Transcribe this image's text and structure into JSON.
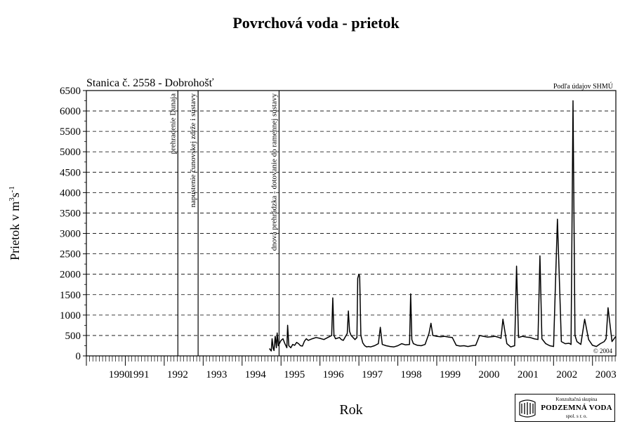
{
  "chart_data": {
    "type": "line",
    "title": "Povrchová voda - prietok",
    "subtitle": "Stanica č. 2558 - Dobrohošť",
    "source_note": "Podľa údajov SHMÚ",
    "copyright": "© 2004",
    "xlabel": "Rok",
    "ylabel_main": "Prietok v m",
    "ylabel_sup1": "3",
    "ylabel_mid": "s",
    "ylabel_sup2": "-1",
    "xlim": [
      1990,
      2003.6
    ],
    "ylim": [
      0,
      6500
    ],
    "yticks": [
      0,
      500,
      1000,
      1500,
      2000,
      2500,
      3000,
      3500,
      4000,
      4500,
      5000,
      5500,
      6000,
      6500
    ],
    "xtick_labels": [
      {
        "label": "1990",
        "x": 1990.5
      },
      {
        "label": "1991",
        "x": 1991.0
      },
      {
        "label": "1992",
        "x": 1992.0
      },
      {
        "label": "1993",
        "x": 1993.0
      },
      {
        "label": "1994",
        "x": 1994.0
      },
      {
        "label": "1995",
        "x": 1995.0
      },
      {
        "label": "1996",
        "x": 1996.0
      },
      {
        "label": "1997",
        "x": 1997.0
      },
      {
        "label": "1998",
        "x": 1998.0
      },
      {
        "label": "1999",
        "x": 1999.0
      },
      {
        "label": "2000",
        "x": 2000.0
      },
      {
        "label": "2001",
        "x": 2001.0
      },
      {
        "label": "2002",
        "x": 2002.0
      },
      {
        "label": "2003",
        "x": 2003.0
      }
    ],
    "year_boundaries": [
      1990,
      1991,
      1992,
      1993,
      1994,
      1995,
      1996,
      1997,
      1998,
      1999,
      2000,
      2001,
      2002,
      2003
    ],
    "grid_dashed_y": true,
    "event_lines": [
      {
        "x": 1992.35,
        "label": "prehradenie Dunaja"
      },
      {
        "x": 1992.87,
        "label": "napustenie čunovskej zdrže i sústavy"
      },
      {
        "x": 1994.95,
        "label": "dnová prehrádzka - dotovanie do ramennej sústavy"
      }
    ],
    "series": [
      {
        "x": [
          1994.7,
          1994.75,
          1994.77,
          1994.8,
          1994.82,
          1994.85,
          1994.88,
          1994.9,
          1994.93,
          1995.0,
          1995.05,
          1995.1,
          1995.15,
          1995.17,
          1995.2,
          1995.25,
          1995.3,
          1995.35,
          1995.4,
          1995.45,
          1995.5,
          1995.55,
          1995.6,
          1995.65,
          1995.7,
          1995.75,
          1995.8,
          1995.9,
          1996.0,
          1996.1,
          1996.2,
          1996.3,
          1996.33,
          1996.36,
          1996.4,
          1996.5,
          1996.55,
          1996.6,
          1996.7,
          1996.73,
          1996.76,
          1996.8,
          1996.9,
          1996.95,
          1996.97,
          1997.0,
          1997.02,
          1997.05,
          1997.1,
          1997.15,
          1997.2,
          1997.25,
          1997.3,
          1997.4,
          1997.5,
          1997.55,
          1997.6,
          1997.7,
          1997.8,
          1997.9,
          1998.0,
          1998.1,
          1998.2,
          1998.3,
          1998.33,
          1998.36,
          1998.4,
          1998.5,
          1998.6,
          1998.7,
          1998.8,
          1998.85,
          1998.9,
          1999.0,
          1999.1,
          1999.2,
          1999.3,
          1999.4,
          1999.5,
          1999.6,
          1999.7,
          1999.8,
          1999.9,
          2000.0,
          2000.1,
          2000.2,
          2000.3,
          2000.4,
          2000.5,
          2000.6,
          2000.65,
          2000.7,
          2000.8,
          2000.9,
          2001.0,
          2001.05,
          2001.1,
          2001.2,
          2001.3,
          2001.4,
          2001.5,
          2001.6,
          2001.65,
          2001.7,
          2001.8,
          2001.9,
          2002.0,
          2002.1,
          2002.2,
          2002.3,
          2002.4,
          2002.45,
          2002.5,
          2002.55,
          2002.6,
          2002.7,
          2002.8,
          2002.9,
          2003.0,
          2003.1,
          2003.2,
          2003.3,
          2003.35,
          2003.4,
          2003.5,
          2003.6
        ],
        "y": [
          180,
          120,
          420,
          180,
          130,
          480,
          200,
          560,
          250,
          380,
          420,
          300,
          200,
          750,
          250,
          200,
          280,
          260,
          330,
          300,
          250,
          240,
          360,
          420,
          380,
          400,
          420,
          450,
          430,
          400,
          450,
          500,
          1420,
          500,
          420,
          450,
          400,
          380,
          550,
          1100,
          600,
          500,
          400,
          450,
          1900,
          2000,
          1950,
          500,
          320,
          250,
          220,
          230,
          220,
          250,
          300,
          700,
          280,
          250,
          230,
          220,
          250,
          300,
          270,
          280,
          1520,
          400,
          300,
          260,
          250,
          280,
          550,
          800,
          500,
          480,
          470,
          480,
          460,
          450,
          260,
          240,
          250,
          230,
          250,
          260,
          500,
          480,
          460,
          470,
          480,
          450,
          430,
          900,
          300,
          220,
          250,
          2200,
          450,
          480,
          460,
          450,
          420,
          400,
          2450,
          420,
          300,
          250,
          230,
          3350,
          350,
          300,
          310,
          280,
          6250,
          500,
          350,
          280,
          900,
          400,
          260,
          230,
          300,
          350,
          420,
          1180,
          350,
          480
        ]
      }
    ]
  },
  "logo": {
    "line1": "Konzultačná skupina",
    "line2": "PODZEMNÁ VODA",
    "line3": "spol. s r. o."
  }
}
